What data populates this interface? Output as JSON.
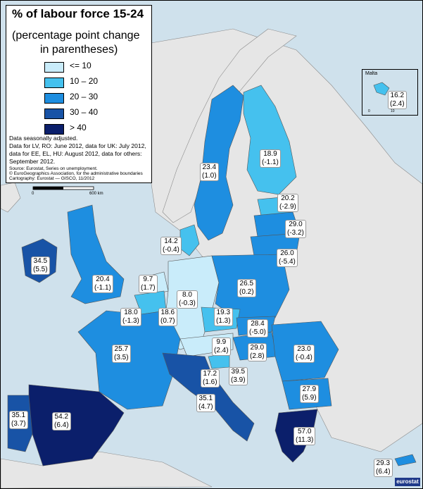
{
  "legend": {
    "title": "% of labour force 15-24",
    "subtitle_line1": "(percentage point change",
    "subtitle_line2": "in parentheses)",
    "classes": [
      {
        "label": "<= 10",
        "color": "#c9ecfa"
      },
      {
        "label": "10 – 20",
        "color": "#45c1ee"
      },
      {
        "label": "20 – 30",
        "color": "#1e8ee0"
      },
      {
        "label": "30 – 40",
        "color": "#1853a6"
      },
      {
        "label": "> 40",
        "color": "#0b1f6b"
      }
    ]
  },
  "notes": [
    "Data seasonally adjusted.",
    "Data for LV, RO: June 2012, data for UK: July 2012,",
    "data for EE, EL, HU: August 2012, data for others:",
    "September 2012."
  ],
  "source_lines": [
    "Source: Eurostat, Series on unemployment.",
    "© EuroGeographics Association, for the administrative boundaries",
    "Cartography: Eurostat — GISCO, 11/2012"
  ],
  "scale_bar": {
    "start": "0",
    "end": "600 km"
  },
  "inset": {
    "title": "Malta",
    "value": "16.2",
    "change": "(2.4)",
    "scale_start": "0",
    "scale_end": "10"
  },
  "logo_text": "eurostat",
  "colors": {
    "sea": "#cfe1ec",
    "non_eu": "#e6e6e6"
  },
  "regions": [
    {
      "value": "23.4",
      "change": "(1.0)"
    },
    {
      "value": "18.9",
      "change": "(-1.1)"
    },
    {
      "value": "20.2",
      "change": "(-2.9)"
    },
    {
      "value": "29.0",
      "change": "(-3.2)"
    },
    {
      "value": "26.0",
      "change": "(-5.4)"
    },
    {
      "value": "14.2",
      "change": "(-0.4)"
    },
    {
      "value": "34.5",
      "change": "(5.5)"
    },
    {
      "value": "20.4",
      "change": "(-1.1)"
    },
    {
      "value": "9.7",
      "change": "(1.7)"
    },
    {
      "value": "8.0",
      "change": "(-0.3)"
    },
    {
      "value": "26.5",
      "change": "(0.2)"
    },
    {
      "value": "18.0",
      "change": "(-1.3)"
    },
    {
      "value": "18.6",
      "change": "(0.7)"
    },
    {
      "value": "19.3",
      "change": "(1.3)"
    },
    {
      "value": "28.4",
      "change": "(-5.0)"
    },
    {
      "value": "9.9",
      "change": "(2.4)"
    },
    {
      "value": "29.0",
      "change": "(2.8)"
    },
    {
      "value": "23.0",
      "change": "(-0.4)"
    },
    {
      "value": "25.7",
      "change": "(3.5)"
    },
    {
      "value": "17.2",
      "change": "(1.6)"
    },
    {
      "value": "39.5",
      "change": "(3.9)"
    },
    {
      "value": "35.1",
      "change": "(4.7)"
    },
    {
      "value": "27.9",
      "change": "(5.9)"
    },
    {
      "value": "35.1",
      "change": "(3.7)"
    },
    {
      "value": "54.2",
      "change": "(6.4)"
    },
    {
      "value": "57.0",
      "change": "(11.3)"
    },
    {
      "value": "29.3",
      "change": "(6.4)"
    }
  ]
}
